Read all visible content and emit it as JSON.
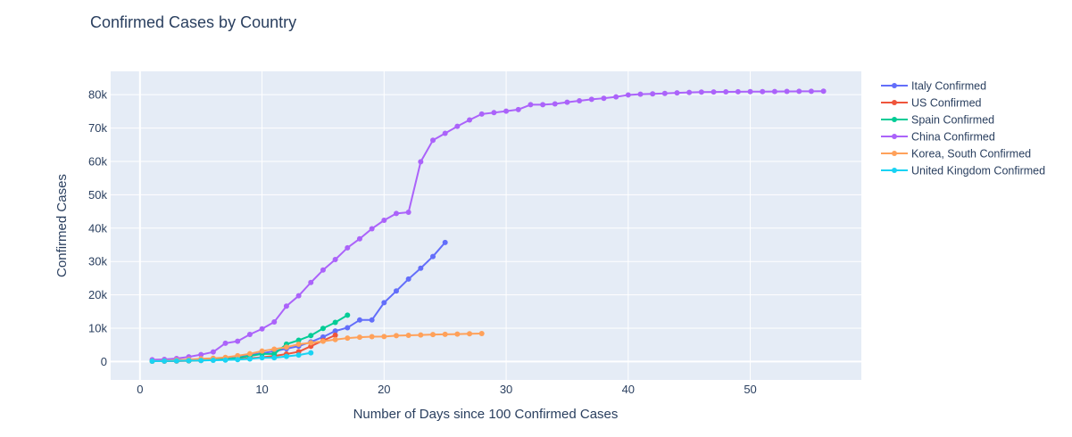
{
  "chart_data": {
    "type": "line",
    "title": "Confirmed Cases by Country",
    "xlabel": "Number of Days since 100 Confirmed Cases",
    "ylabel": "Confirmed Cases",
    "xlim": [
      -2.4,
      59.1
    ],
    "ylim": [
      -5500,
      87000
    ],
    "x_ticks": [
      0,
      10,
      20,
      30,
      40,
      50
    ],
    "x_tick_labels": [
      "0",
      "10",
      "20",
      "30",
      "40",
      "50"
    ],
    "y_ticks": [
      0,
      10000,
      20000,
      30000,
      40000,
      50000,
      60000,
      70000,
      80000
    ],
    "y_tick_labels": [
      "0",
      "10k",
      "20k",
      "30k",
      "40k",
      "50k",
      "60k",
      "70k",
      "80k"
    ],
    "grid": true,
    "legend_position": "right",
    "series": [
      {
        "name": "Italy Confirmed",
        "color": "#636efa",
        "x": [
          1,
          2,
          3,
          4,
          5,
          6,
          7,
          8,
          9,
          10,
          11,
          12,
          13,
          14,
          15,
          16,
          17,
          18,
          19,
          20,
          21,
          22,
          23,
          24,
          25
        ],
        "y": [
          155,
          229,
          322,
          453,
          655,
          888,
          1128,
          1694,
          2036,
          2502,
          3089,
          3858,
          4636,
          5883,
          7375,
          9172,
          10149,
          12462,
          12462,
          17660,
          21157,
          24747,
          27980,
          31506,
          35713
        ]
      },
      {
        "name": "US Confirmed",
        "color": "#ef553b",
        "x": [
          1,
          2,
          3,
          4,
          5,
          6,
          7,
          8,
          9,
          10,
          11,
          12,
          13,
          14,
          15,
          16
        ],
        "y": [
          100,
          124,
          158,
          221,
          319,
          435,
          541,
          704,
          994,
          1301,
          1697,
          2247,
          2943,
          4600,
          6300,
          7900
        ]
      },
      {
        "name": "Spain Confirmed",
        "color": "#00cc96",
        "x": [
          1,
          2,
          3,
          4,
          5,
          6,
          7,
          8,
          9,
          10,
          11,
          12,
          13,
          14,
          15,
          16,
          17
        ],
        "y": [
          120,
          165,
          222,
          259,
          400,
          500,
          673,
          1073,
          1695,
          2277,
          2277,
          5232,
          6391,
          7798,
          9942,
          11748,
          13910
        ]
      },
      {
        "name": "China Confirmed",
        "color": "#ab63fa",
        "x": [
          1,
          2,
          3,
          4,
          5,
          6,
          7,
          8,
          9,
          10,
          11,
          12,
          13,
          14,
          15,
          16,
          17,
          18,
          19,
          20,
          21,
          22,
          23,
          24,
          25,
          26,
          27,
          28,
          29,
          30,
          31,
          32,
          33,
          34,
          35,
          36,
          37,
          38,
          39,
          40,
          41,
          42,
          43,
          44,
          45,
          46,
          47,
          48,
          49,
          50,
          51,
          52,
          53,
          54,
          55,
          56
        ],
        "y": [
          548,
          643,
          920,
          1406,
          2075,
          2877,
          5509,
          6087,
          8141,
          9802,
          11891,
          16630,
          19716,
          23707,
          27440,
          30587,
          34110,
          36814,
          39829,
          42354,
          44386,
          44759,
          59895,
          66358,
          68413,
          70513,
          72434,
          74211,
          74619,
          75077,
          75550,
          77001,
          77022,
          77241,
          77754,
          78166,
          78600,
          78928,
          79356,
          79932,
          80136,
          80261,
          80386,
          80537,
          80690,
          80770,
          80823,
          80860,
          80887,
          80921,
          80932,
          80945,
          80977,
          81003,
          81033,
          81058
        ]
      },
      {
        "name": "Korea, South Confirmed",
        "color": "#ffa15a",
        "x": [
          1,
          2,
          3,
          4,
          5,
          6,
          7,
          8,
          9,
          10,
          11,
          12,
          13,
          14,
          15,
          16,
          17,
          18,
          19,
          20,
          21,
          22,
          23,
          24,
          25,
          26,
          27,
          28
        ],
        "y": [
          104,
          204,
          433,
          602,
          833,
          977,
          1261,
          1766,
          2337,
          3150,
          3736,
          4335,
          5186,
          5621,
          6088,
          6593,
          7041,
          7314,
          7478,
          7513,
          7755,
          7869,
          7979,
          8086,
          8162,
          8236,
          8320,
          8413
        ]
      },
      {
        "name": "United Kingdom Confirmed",
        "color": "#19d3f3",
        "x": [
          1,
          2,
          3,
          4,
          5,
          6,
          7,
          8,
          9,
          10,
          11,
          12,
          13,
          14
        ],
        "y": [
          115,
          163,
          206,
          273,
          321,
          382,
          456,
          590,
          798,
          1140,
          1140,
          1543,
          1950,
          2626
        ]
      }
    ]
  }
}
